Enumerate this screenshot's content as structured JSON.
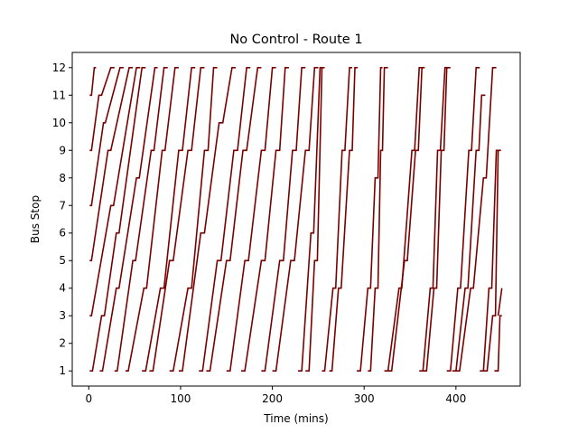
{
  "chart_data": {
    "type": "line",
    "title": "No Control - Route 1",
    "xlabel": "Time (mins)",
    "ylabel": "Bus Stop",
    "xlim": [
      -18,
      470
    ],
    "ylim": [
      0.45,
      12.55
    ],
    "xticks": [
      "0",
      "100",
      "200",
      "300",
      "400"
    ],
    "xtick_values": [
      0,
      100,
      200,
      300,
      400
    ],
    "yticks": [
      "1",
      "2",
      "3",
      "4",
      "5",
      "6",
      "7",
      "8",
      "9",
      "10",
      "11",
      "12"
    ],
    "ytick_values": [
      1,
      2,
      3,
      4,
      5,
      6,
      7,
      8,
      9,
      10,
      11,
      12
    ],
    "grid": false,
    "legend": "none",
    "line_color": "#7a0000",
    "series": [
      {
        "x": [
          1,
          3,
          6,
          8
        ],
        "y": [
          11,
          11,
          12,
          12
        ]
      },
      {
        "x": [
          1,
          3,
          11,
          14,
          24,
          28
        ],
        "y": [
          9,
          9,
          11,
          11,
          12,
          12
        ]
      },
      {
        "x": [
          1,
          3,
          16,
          18,
          34,
          38
        ],
        "y": [
          7,
          7,
          10,
          10,
          12,
          12
        ]
      },
      {
        "x": [
          1,
          3,
          21,
          24,
          44,
          48
        ],
        "y": [
          5,
          5,
          9,
          9,
          12,
          12
        ]
      },
      {
        "x": [
          1,
          3,
          24,
          27,
          52,
          56
        ],
        "y": [
          3,
          3,
          7,
          7,
          12,
          12
        ]
      },
      {
        "x": [
          1,
          4,
          14,
          17,
          30,
          33,
          58,
          62
        ],
        "y": [
          1,
          1,
          3,
          3,
          6,
          6,
          12,
          12
        ]
      },
      {
        "x": [
          12,
          15,
          30,
          33,
          52,
          55,
          72,
          75
        ],
        "y": [
          1,
          1,
          4,
          4,
          8,
          8,
          12,
          12
        ]
      },
      {
        "x": [
          28,
          31,
          48,
          51,
          68,
          71,
          82,
          86
        ],
        "y": [
          1,
          1,
          5,
          5,
          9,
          9,
          12,
          12
        ]
      },
      {
        "x": [
          40,
          43,
          60,
          63,
          80,
          83,
          94,
          98
        ],
        "y": [
          1,
          1,
          4,
          4,
          9,
          9,
          12,
          12
        ]
      },
      {
        "x": [
          58,
          62,
          78,
          82,
          98,
          102,
          112,
          116
        ],
        "y": [
          1,
          1,
          4,
          4,
          9,
          9,
          12,
          12
        ]
      },
      {
        "x": [
          66,
          70,
          88,
          92,
          108,
          112,
          122,
          126
        ],
        "y": [
          1,
          1,
          5,
          5,
          9,
          9,
          12,
          12
        ]
      },
      {
        "x": [
          88,
          92,
          108,
          112,
          126,
          130,
          136,
          140
        ],
        "y": [
          1,
          1,
          4,
          4,
          9,
          9,
          12,
          12
        ]
      },
      {
        "x": [
          98,
          102,
          122,
          126,
          142,
          146,
          156,
          160
        ],
        "y": [
          1,
          1,
          6,
          6,
          10,
          10,
          12,
          12
        ]
      },
      {
        "x": [
          120,
          124,
          140,
          144,
          158,
          162,
          172,
          176
        ],
        "y": [
          1,
          1,
          5,
          5,
          9,
          9,
          12,
          12
        ]
      },
      {
        "x": [
          128,
          132,
          150,
          154,
          168,
          172,
          184,
          188
        ],
        "y": [
          1,
          1,
          5,
          5,
          9,
          9,
          12,
          12
        ]
      },
      {
        "x": [
          150,
          154,
          170,
          174,
          188,
          192,
          200,
          204
        ],
        "y": [
          1,
          1,
          5,
          5,
          9,
          9,
          12,
          12
        ]
      },
      {
        "x": [
          166,
          170,
          188,
          192,
          204,
          208,
          214,
          218
        ],
        "y": [
          1,
          1,
          5,
          5,
          9,
          9,
          12,
          12
        ]
      },
      {
        "x": [
          188,
          192,
          208,
          212,
          222,
          226,
          232,
          236
        ],
        "y": [
          1,
          1,
          5,
          5,
          9,
          9,
          12,
          12
        ]
      },
      {
        "x": [
          200,
          204,
          220,
          224,
          236,
          240,
          246,
          250
        ],
        "y": [
          1,
          1,
          5,
          5,
          9,
          9,
          12,
          12
        ]
      },
      {
        "x": [
          228,
          232,
          242,
          245,
          252,
          255
        ],
        "y": [
          1,
          1,
          6,
          6,
          12,
          12
        ]
      },
      {
        "x": [
          236,
          240,
          246,
          249,
          254,
          257
        ],
        "y": [
          1,
          1,
          5,
          5,
          12,
          12
        ]
      },
      {
        "x": [
          254,
          257,
          266,
          269,
          276,
          279,
          284,
          287
        ],
        "y": [
          1,
          1,
          4,
          4,
          9,
          9,
          12,
          12
        ]
      },
      {
        "x": [
          262,
          265,
          272,
          275,
          284,
          287,
          290,
          293
        ],
        "y": [
          1,
          1,
          4,
          4,
          9,
          9,
          12,
          12
        ]
      },
      {
        "x": [
          292,
          296,
          304,
          307,
          312,
          315,
          318,
          320
        ],
        "y": [
          1,
          1,
          4,
          4,
          8,
          8,
          12,
          12
        ]
      },
      {
        "x": [
          304,
          307,
          312,
          315,
          318,
          320,
          322,
          326
        ],
        "y": [
          1,
          1,
          4,
          4,
          9,
          9,
          12,
          12
        ]
      },
      {
        "x": [
          322,
          326,
          338,
          341,
          352,
          355,
          360,
          364
        ],
        "y": [
          1,
          1,
          4,
          4,
          9,
          9,
          12,
          12
        ]
      },
      {
        "x": [
          326,
          330,
          344,
          347,
          356,
          359,
          363,
          366
        ],
        "y": [
          1,
          1,
          5,
          5,
          9,
          9,
          12,
          12
        ]
      },
      {
        "x": [
          360,
          364,
          372,
          375,
          380,
          383,
          388,
          392
        ],
        "y": [
          1,
          1,
          4,
          4,
          9,
          9,
          12,
          12
        ]
      },
      {
        "x": [
          364,
          368,
          376,
          379,
          384,
          387,
          390,
          394
        ],
        "y": [
          1,
          1,
          4,
          4,
          9,
          9,
          12,
          12
        ]
      },
      {
        "x": [
          390,
          394,
          402,
          405,
          414,
          417,
          422,
          426
        ],
        "y": [
          1,
          1,
          4,
          4,
          9,
          9,
          12,
          12
        ]
      },
      {
        "x": [
          396,
          400,
          410,
          413,
          422,
          425,
          428,
          432
        ],
        "y": [
          1,
          1,
          4,
          4,
          9,
          9,
          11,
          11
        ]
      },
      {
        "x": [
          400,
          404,
          416,
          419,
          430,
          433,
          440,
          444
        ],
        "y": [
          1,
          1,
          4,
          4,
          8,
          8,
          12,
          12
        ]
      },
      {
        "x": [
          426,
          430,
          436,
          439,
          444,
          447
        ],
        "y": [
          1,
          1,
          4,
          4,
          9,
          9
        ]
      },
      {
        "x": [
          430,
          434,
          440,
          443,
          446,
          449
        ],
        "y": [
          1,
          1,
          3,
          3,
          9,
          9
        ]
      },
      {
        "x": [
          442,
          446
        ],
        "y": [
          1,
          1
        ]
      },
      {
        "x": [
          442,
          446,
          448,
          450
        ],
        "y": [
          1,
          1,
          3,
          3
        ]
      },
      {
        "x": [
          446,
          450
        ],
        "y": [
          3,
          4
        ]
      }
    ]
  }
}
